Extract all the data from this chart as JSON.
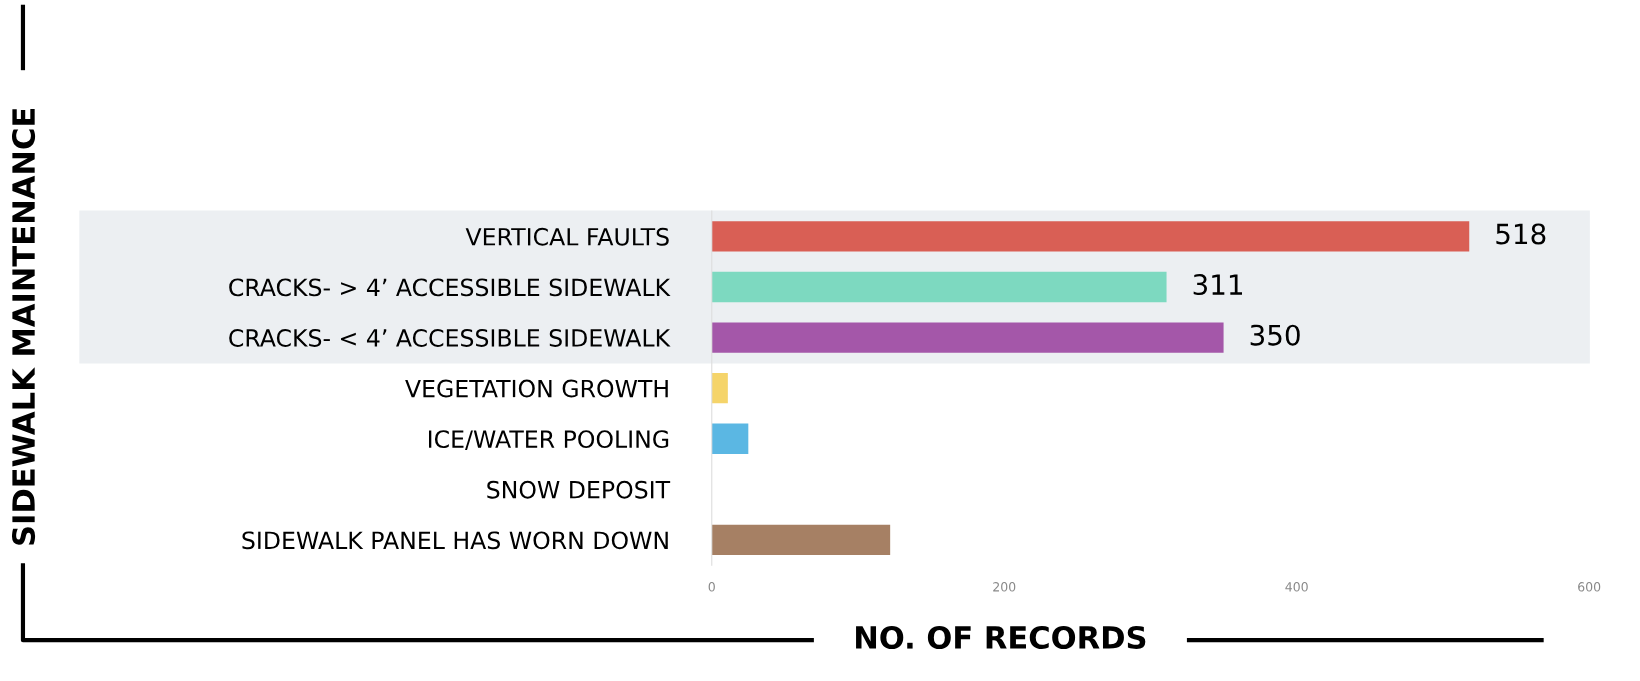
{
  "chart_data": {
    "type": "bar",
    "orientation": "horizontal",
    "xlabel": "NO. OF RECORDS",
    "annotations": [
      "SIDEWALK MAINTENANCE"
    ],
    "categories": [
      "VERTICAL FAULTS",
      "CRACKS- > 4’ ACCESSIBLE SIDEWALK",
      "CRACKS- < 4’ ACCESSIBLE SIDEWALK",
      "VEGETATION GROWTH",
      "ICE/WATER POOLING",
      "SNOW DEPOSIT",
      "SIDEWALK PANEL HAS WORN DOWN"
    ],
    "values": [
      518,
      311,
      350,
      11,
      25,
      0,
      122
    ],
    "colors": [
      "#d95f55",
      "#7dd9c0",
      "#a457a9",
      "#f5d46a",
      "#5bb7e3",
      "#cccccc",
      "#a68064"
    ],
    "value_labels": [
      "518",
      "311",
      "350",
      null,
      null,
      null,
      null
    ],
    "xlim": [
      0,
      600
    ],
    "xticks": [
      0,
      200,
      400,
      600
    ],
    "bands": [
      {
        "axis": "y",
        "from": "VERTICAL FAULTS",
        "to": "CRACKS- < 4’ ACCESSIBLE SIDEWALK",
        "color": "#eceff2"
      }
    ],
    "grid": false,
    "legend": false
  }
}
